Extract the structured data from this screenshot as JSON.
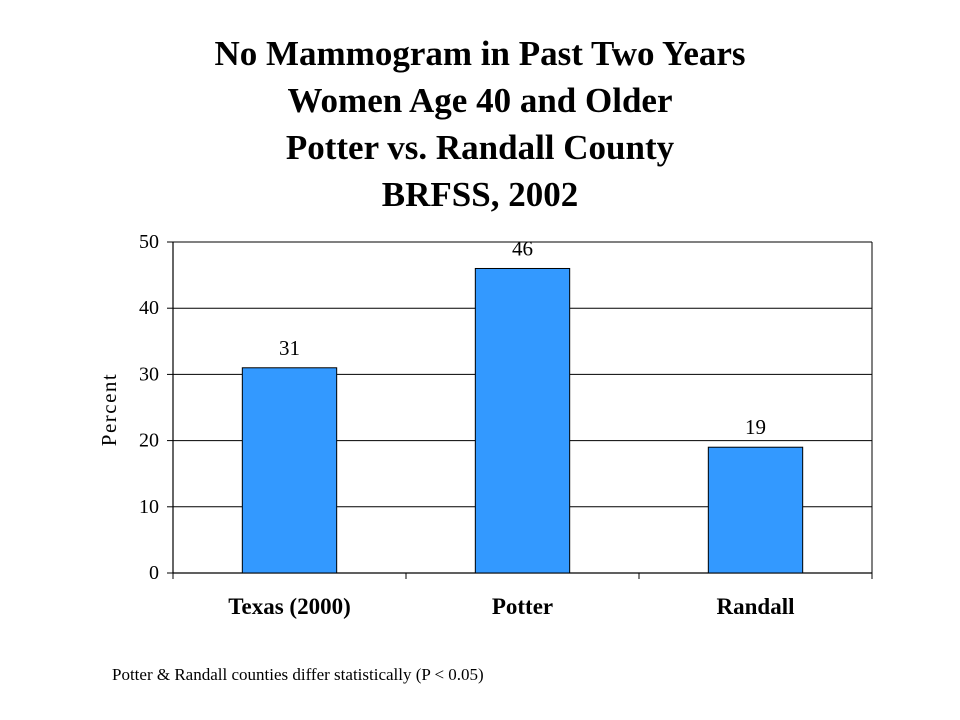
{
  "chart_data": {
    "type": "bar",
    "title_lines": [
      "No Mammogram in Past Two Years",
      "Women Age 40 and Older",
      "Potter vs. Randall County",
      "BRFSS, 2002"
    ],
    "categories": [
      "Texas (2000)",
      "Potter",
      "Randall"
    ],
    "values": [
      31,
      46,
      19
    ],
    "data_labels": [
      "31",
      "46",
      "19"
    ],
    "xlabel": "",
    "ylabel": "Percent",
    "ylim": [
      0,
      50
    ],
    "yticks": [
      0,
      10,
      20,
      30,
      40,
      50
    ],
    "grid": true,
    "legend": "none",
    "bar_color": "#3399FF",
    "bar_border_color": "#000000"
  },
  "footnote": "Potter & Randall counties differ statistically (P < 0.05)"
}
